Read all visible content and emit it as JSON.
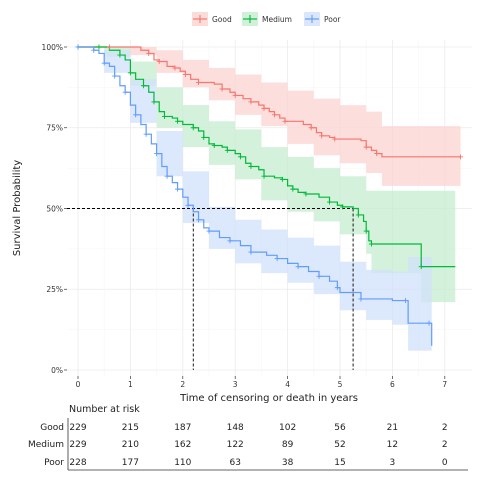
{
  "chart_data": {
    "type": "line",
    "subtype": "kaplan-meier",
    "xlabel": "Time of censoring or death in years",
    "ylabel": "Survival Probability",
    "xlim": [
      -0.2,
      7.6
    ],
    "ylim": [
      0,
      1.02
    ],
    "x_ticks": [
      0,
      1,
      2,
      3,
      4,
      5,
      6,
      7
    ],
    "x_tick_labels": [
      "0",
      "1",
      "2",
      "3",
      "4",
      "5",
      "6",
      "7"
    ],
    "y_ticks": [
      0,
      0.25,
      0.5,
      0.75,
      1.0
    ],
    "y_tick_labels": [
      "0%",
      "25%",
      "50%",
      "75%",
      "100%"
    ],
    "grid": true,
    "legend_position": "top",
    "median_line": {
      "y": 0.5,
      "x_medians": [
        2.2,
        5.25
      ],
      "style": "dashed"
    },
    "series": [
      {
        "name": "Good",
        "color": "#f8766d",
        "fill": "#fbd3d0",
        "points": [
          [
            0,
            1
          ],
          [
            0.6,
            1
          ],
          [
            1.2,
            0.99
          ],
          [
            1.35,
            0.98
          ],
          [
            1.45,
            0.96
          ],
          [
            1.55,
            0.955
          ],
          [
            1.7,
            0.94
          ],
          [
            1.85,
            0.935
          ],
          [
            1.95,
            0.925
          ],
          [
            2.05,
            0.915
          ],
          [
            2.15,
            0.9
          ],
          [
            2.3,
            0.89
          ],
          [
            2.6,
            0.885
          ],
          [
            2.75,
            0.87
          ],
          [
            2.9,
            0.86
          ],
          [
            3.0,
            0.85
          ],
          [
            3.15,
            0.84
          ],
          [
            3.3,
            0.83
          ],
          [
            3.45,
            0.82
          ],
          [
            3.55,
            0.81
          ],
          [
            3.65,
            0.8
          ],
          [
            3.75,
            0.79
          ],
          [
            3.85,
            0.78
          ],
          [
            3.95,
            0.77
          ],
          [
            4.3,
            0.76
          ],
          [
            4.45,
            0.75
          ],
          [
            4.55,
            0.735
          ],
          [
            4.65,
            0.725
          ],
          [
            4.8,
            0.72
          ],
          [
            4.9,
            0.715
          ],
          [
            5.4,
            0.71
          ],
          [
            5.5,
            0.69
          ],
          [
            5.6,
            0.68
          ],
          [
            5.7,
            0.67
          ],
          [
            5.8,
            0.66
          ],
          [
            7.3,
            0.66
          ]
        ],
        "ci_upper": [
          [
            0,
            1
          ],
          [
            1,
            1
          ],
          [
            1.5,
            0.99
          ],
          [
            2,
            0.96
          ],
          [
            2.5,
            0.935
          ],
          [
            3,
            0.915
          ],
          [
            3.5,
            0.89
          ],
          [
            4,
            0.865
          ],
          [
            4.5,
            0.84
          ],
          [
            5,
            0.82
          ],
          [
            5.5,
            0.8
          ],
          [
            5.8,
            0.755
          ],
          [
            7.3,
            0.755
          ]
        ],
        "ci_lower": [
          [
            0,
            1
          ],
          [
            1,
            0.975
          ],
          [
            1.5,
            0.92
          ],
          [
            2,
            0.875
          ],
          [
            2.5,
            0.835
          ],
          [
            3,
            0.79
          ],
          [
            3.5,
            0.755
          ],
          [
            4,
            0.7
          ],
          [
            4.5,
            0.665
          ],
          [
            5,
            0.64
          ],
          [
            5.5,
            0.61
          ],
          [
            5.8,
            0.57
          ],
          [
            7.3,
            0.57
          ]
        ]
      },
      {
        "name": "Medium",
        "color": "#00ba38",
        "fill": "#c5ecd0",
        "points": [
          [
            0,
            1
          ],
          [
            0.4,
            1
          ],
          [
            0.6,
            0.99
          ],
          [
            0.8,
            0.975
          ],
          [
            0.9,
            0.96
          ],
          [
            1.0,
            0.92
          ],
          [
            1.1,
            0.9
          ],
          [
            1.25,
            0.88
          ],
          [
            1.35,
            0.86
          ],
          [
            1.45,
            0.83
          ],
          [
            1.55,
            0.8
          ],
          [
            1.65,
            0.785
          ],
          [
            1.8,
            0.78
          ],
          [
            1.9,
            0.77
          ],
          [
            2.0,
            0.76
          ],
          [
            2.2,
            0.75
          ],
          [
            2.3,
            0.74
          ],
          [
            2.4,
            0.72
          ],
          [
            2.5,
            0.7
          ],
          [
            2.6,
            0.695
          ],
          [
            2.75,
            0.69
          ],
          [
            2.85,
            0.68
          ],
          [
            3.0,
            0.67
          ],
          [
            3.1,
            0.66
          ],
          [
            3.2,
            0.64
          ],
          [
            3.3,
            0.63
          ],
          [
            3.45,
            0.62
          ],
          [
            3.55,
            0.6
          ],
          [
            3.75,
            0.595
          ],
          [
            3.9,
            0.59
          ],
          [
            4.0,
            0.57
          ],
          [
            4.1,
            0.56
          ],
          [
            4.2,
            0.55
          ],
          [
            4.35,
            0.545
          ],
          [
            4.6,
            0.535
          ],
          [
            4.8,
            0.52
          ],
          [
            4.95,
            0.51
          ],
          [
            5.05,
            0.505
          ],
          [
            5.25,
            0.5
          ],
          [
            5.35,
            0.48
          ],
          [
            5.45,
            0.46
          ],
          [
            5.5,
            0.43
          ],
          [
            5.55,
            0.4
          ],
          [
            5.6,
            0.39
          ],
          [
            6.5,
            0.39
          ],
          [
            6.55,
            0.32
          ],
          [
            7.2,
            0.32
          ]
        ],
        "ci_upper": [
          [
            0,
            1
          ],
          [
            0.5,
            1
          ],
          [
            1,
            0.955
          ],
          [
            1.5,
            0.875
          ],
          [
            2,
            0.82
          ],
          [
            2.5,
            0.77
          ],
          [
            3,
            0.745
          ],
          [
            3.5,
            0.69
          ],
          [
            4,
            0.66
          ],
          [
            4.5,
            0.625
          ],
          [
            5,
            0.6
          ],
          [
            5.5,
            0.555
          ],
          [
            7.2,
            0.5
          ]
        ],
        "ci_lower": [
          [
            0,
            1
          ],
          [
            0.5,
            0.97
          ],
          [
            1,
            0.88
          ],
          [
            1.5,
            0.75
          ],
          [
            2,
            0.69
          ],
          [
            2.5,
            0.635
          ],
          [
            3,
            0.59
          ],
          [
            3.5,
            0.525
          ],
          [
            4,
            0.49
          ],
          [
            4.5,
            0.46
          ],
          [
            5,
            0.42
          ],
          [
            5.5,
            0.36
          ],
          [
            5.6,
            0.3
          ],
          [
            6.5,
            0.3
          ],
          [
            6.55,
            0.21
          ],
          [
            7.2,
            0.21
          ]
        ]
      },
      {
        "name": "Poor",
        "color": "#619cff",
        "fill": "#d0e0fa",
        "points": [
          [
            0,
            1
          ],
          [
            0.3,
            0.99
          ],
          [
            0.4,
            0.98
          ],
          [
            0.5,
            0.95
          ],
          [
            0.6,
            0.94
          ],
          [
            0.7,
            0.91
          ],
          [
            0.8,
            0.88
          ],
          [
            0.9,
            0.86
          ],
          [
            1.0,
            0.82
          ],
          [
            1.1,
            0.79
          ],
          [
            1.2,
            0.76
          ],
          [
            1.3,
            0.73
          ],
          [
            1.4,
            0.7
          ],
          [
            1.5,
            0.67
          ],
          [
            1.6,
            0.63
          ],
          [
            1.7,
            0.6
          ],
          [
            1.8,
            0.58
          ],
          [
            1.9,
            0.56
          ],
          [
            2.0,
            0.535
          ],
          [
            2.1,
            0.51
          ],
          [
            2.2,
            0.49
          ],
          [
            2.3,
            0.465
          ],
          [
            2.4,
            0.44
          ],
          [
            2.5,
            0.43
          ],
          [
            2.7,
            0.41
          ],
          [
            2.9,
            0.4
          ],
          [
            3.1,
            0.385
          ],
          [
            3.3,
            0.365
          ],
          [
            3.6,
            0.355
          ],
          [
            3.8,
            0.345
          ],
          [
            4.0,
            0.33
          ],
          [
            4.2,
            0.32
          ],
          [
            4.4,
            0.305
          ],
          [
            4.6,
            0.29
          ],
          [
            4.8,
            0.275
          ],
          [
            4.95,
            0.255
          ],
          [
            5.0,
            0.24
          ],
          [
            5.4,
            0.22
          ],
          [
            6.0,
            0.215
          ],
          [
            6.25,
            0.215
          ],
          [
            6.3,
            0.145
          ],
          [
            6.7,
            0.145
          ],
          [
            6.75,
            0.075
          ]
        ],
        "ci_upper": [
          [
            0,
            1
          ],
          [
            0.5,
            0.99
          ],
          [
            1,
            0.9
          ],
          [
            1.5,
            0.74
          ],
          [
            2,
            0.615
          ],
          [
            2.5,
            0.505
          ],
          [
            3,
            0.465
          ],
          [
            3.5,
            0.435
          ],
          [
            4,
            0.41
          ],
          [
            4.5,
            0.385
          ],
          [
            5,
            0.335
          ],
          [
            5.5,
            0.31
          ],
          [
            6,
            0.305
          ],
          [
            6.3,
            0.35
          ],
          [
            6.75,
            0.35
          ]
        ],
        "ci_lower": [
          [
            0,
            1
          ],
          [
            0.5,
            0.92
          ],
          [
            1,
            0.765
          ],
          [
            1.5,
            0.6
          ],
          [
            2,
            0.455
          ],
          [
            2.5,
            0.375
          ],
          [
            3,
            0.33
          ],
          [
            3.5,
            0.3
          ],
          [
            4,
            0.27
          ],
          [
            4.5,
            0.235
          ],
          [
            5,
            0.185
          ],
          [
            5.5,
            0.155
          ],
          [
            6,
            0.14
          ],
          [
            6.3,
            0.06
          ],
          [
            6.75,
            0.06
          ]
        ]
      }
    ],
    "risk_table": {
      "title": "Number at risk",
      "times": [
        0,
        1,
        2,
        3,
        4,
        5,
        6,
        7
      ],
      "rows": [
        {
          "name": "Good",
          "counts": [
            "229",
            "215",
            "187",
            "148",
            "102",
            "56",
            "21",
            "2"
          ]
        },
        {
          "name": "Medium",
          "counts": [
            "229",
            "210",
            "162",
            "122",
            "89",
            "52",
            "12",
            "2"
          ]
        },
        {
          "name": "Poor",
          "counts": [
            "228",
            "177",
            "110",
            "63",
            "38",
            "15",
            "3",
            "0"
          ]
        }
      ]
    }
  }
}
